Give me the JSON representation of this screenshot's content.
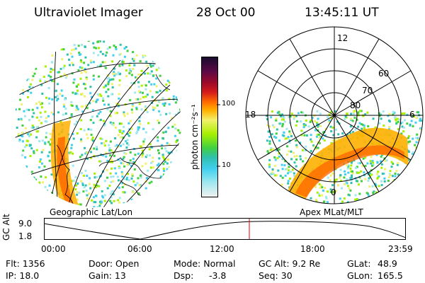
{
  "header": {
    "title": "Ultraviolet Imager",
    "date": "28 Oct 00",
    "time": "13:45:11 UT"
  },
  "colorbar": {
    "unit_label": "photon cm⁻²s⁻¹",
    "ticks": [
      "100",
      "10"
    ],
    "colors": [
      "#1a0a2e",
      "#5a0a46",
      "#9a0a2a",
      "#d41a1a",
      "#ff6a00",
      "#ffb000",
      "#f2f06a",
      "#a8f000",
      "#40d040",
      "#30c0b0",
      "#40d0f0",
      "#a0e8f0",
      "#f0f0f0"
    ]
  },
  "left_panel": {
    "caption": "Geographic Lat/Lon"
  },
  "right_panel": {
    "caption": "Apex MLat/MLT",
    "mlt_labels": {
      "top": "12",
      "left": "18",
      "right": "6",
      "bottom": "0"
    },
    "lat_labels": [
      "60",
      "70",
      "80"
    ]
  },
  "timeline": {
    "axis_label": "GC Alt",
    "y_ticks": [
      "9.0",
      "1.8"
    ],
    "x_ticks": [
      "00:00",
      "06:00",
      "12:00",
      "18:00",
      "23:59"
    ],
    "current_marker_color": "#dd0000"
  },
  "info": {
    "flt": "Flt: 1356",
    "ip": "IP: 18.0",
    "door": "Door: Open",
    "gain": "Gain: 13",
    "mode": "Mode: Normal",
    "dsp_label": "Dsp:",
    "dsp_value": "-3.8",
    "gcalt": "GC Alt: 9.2 Re",
    "seq": "Seq: 30",
    "glat_label": "GLat:",
    "glat_value": "48.9",
    "glon_label": "GLon:",
    "glon_value": "165.5"
  }
}
